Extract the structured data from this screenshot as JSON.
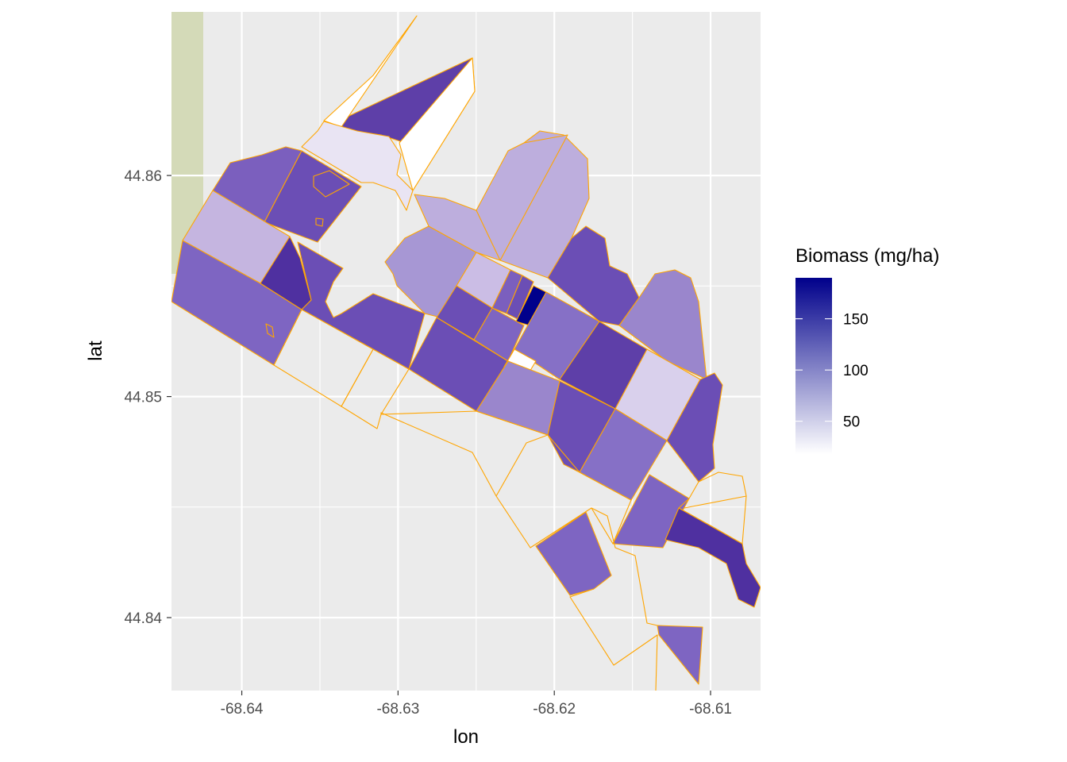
{
  "chart_data": {
    "type": "choropleth",
    "title": "",
    "xlabel": "lon",
    "ylabel": "lat",
    "x_ticks": [
      -68.64,
      -68.63,
      -68.62,
      -68.61
    ],
    "x_tick_labels": [
      "-68.64",
      "-68.63",
      "-68.62",
      "-68.61"
    ],
    "y_ticks": [
      44.86,
      44.85,
      44.84
    ],
    "y_tick_labels": [
      "44.86",
      "44.85",
      "44.84"
    ],
    "xlim": [
      -68.6445,
      -68.6068
    ],
    "ylim": [
      44.8367,
      44.8674
    ],
    "grid": true,
    "legend": {
      "title": "Biomass (mg/ha)",
      "position": "right",
      "breaks": [
        50,
        100,
        150
      ],
      "break_labels": [
        "50",
        "100",
        "150"
      ],
      "range": [
        18,
        190
      ],
      "color_low": "#ffffff",
      "color_high": "#00008B"
    },
    "colors": {
      "panel_background": "#EBEBEB",
      "grid": "#ffffff",
      "parcel_outline": "#FFA500",
      "basemap_strip": "#D4DAB8"
    }
  }
}
